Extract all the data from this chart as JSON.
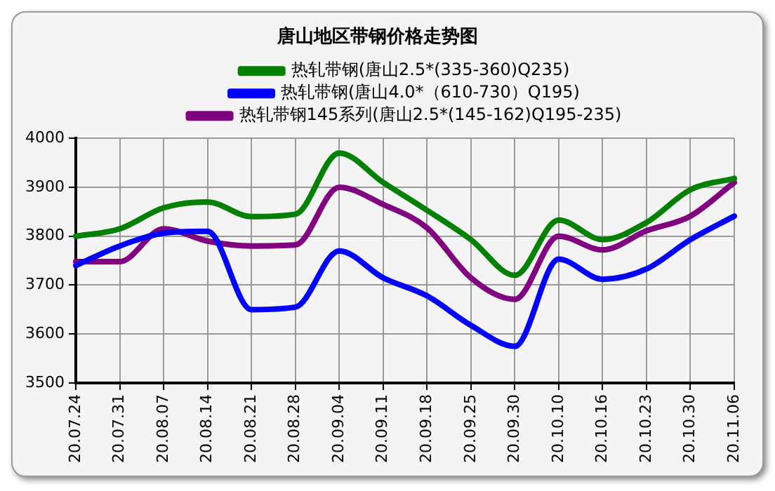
{
  "chart_data": {
    "type": "line",
    "title": "唐山地区带钢价格走势图",
    "categories": [
      "20.07.24",
      "20.07.31",
      "20.08.07",
      "20.08.14",
      "20.08.21",
      "20.08.28",
      "20.09.04",
      "20.09.11",
      "20.09.18",
      "20.09.25",
      "20.09.30",
      "20.10.10",
      "20.10.16",
      "20.10.23",
      "20.10.30",
      "20.11.06"
    ],
    "series": [
      {
        "name": "热轧带钢(唐山2.5*(335-360)Q235)",
        "color": "#008000",
        "values": [
          3800,
          3815,
          3858,
          3870,
          3840,
          3845,
          3970,
          3910,
          3853,
          3793,
          3720,
          3833,
          3793,
          3828,
          3895,
          3918
        ]
      },
      {
        "name": "热轧带钢(唐山4.0*（610-730）Q195)",
        "color": "#0000ff",
        "values": [
          3740,
          3780,
          3806,
          3810,
          3650,
          3655,
          3770,
          3715,
          3678,
          3618,
          3575,
          3753,
          3712,
          3733,
          3793,
          3841
        ]
      },
      {
        "name": "热轧带钢145系列(唐山2.5*(145-162)Q195-235)",
        "color": "#800080",
        "values": [
          3748,
          3748,
          3815,
          3790,
          3780,
          3782,
          3900,
          3865,
          3817,
          3715,
          3671,
          3800,
          3772,
          3811,
          3841,
          3910
        ]
      }
    ],
    "ylim": [
      3500,
      4000
    ],
    "yticks": [
      3500,
      3600,
      3700,
      3800,
      3900,
      4000
    ],
    "grid": true,
    "legend": "top",
    "marker": "none",
    "line_style": "solid"
  }
}
